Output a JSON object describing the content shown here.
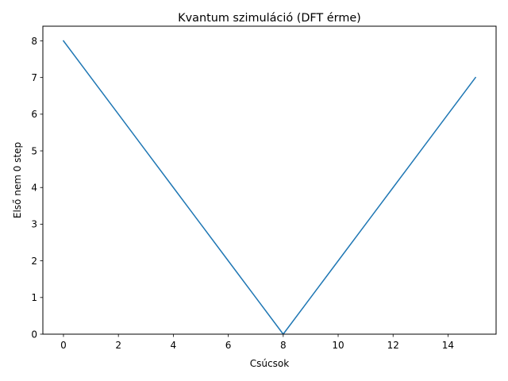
{
  "chart_data": {
    "type": "line",
    "title": "Kvantum szimuláció (DFT érme)",
    "xlabel": "Csúcsok",
    "ylabel": "Első nem 0 step",
    "xlim": [
      -0.75,
      15.75
    ],
    "ylim": [
      0,
      8.4
    ],
    "xticks": [
      0,
      2,
      4,
      6,
      8,
      10,
      12,
      14
    ],
    "yticks": [
      0,
      1,
      2,
      3,
      4,
      5,
      6,
      7,
      8
    ],
    "grid": false,
    "series": [
      {
        "color": "#1f77b4",
        "x": [
          0,
          1,
          2,
          3,
          4,
          5,
          6,
          7,
          8,
          9,
          10,
          11,
          12,
          13,
          14,
          15
        ],
        "y": [
          8,
          7,
          6,
          5,
          4,
          3,
          2,
          1,
          0,
          1,
          2,
          3,
          4,
          5,
          6,
          7
        ]
      }
    ]
  }
}
